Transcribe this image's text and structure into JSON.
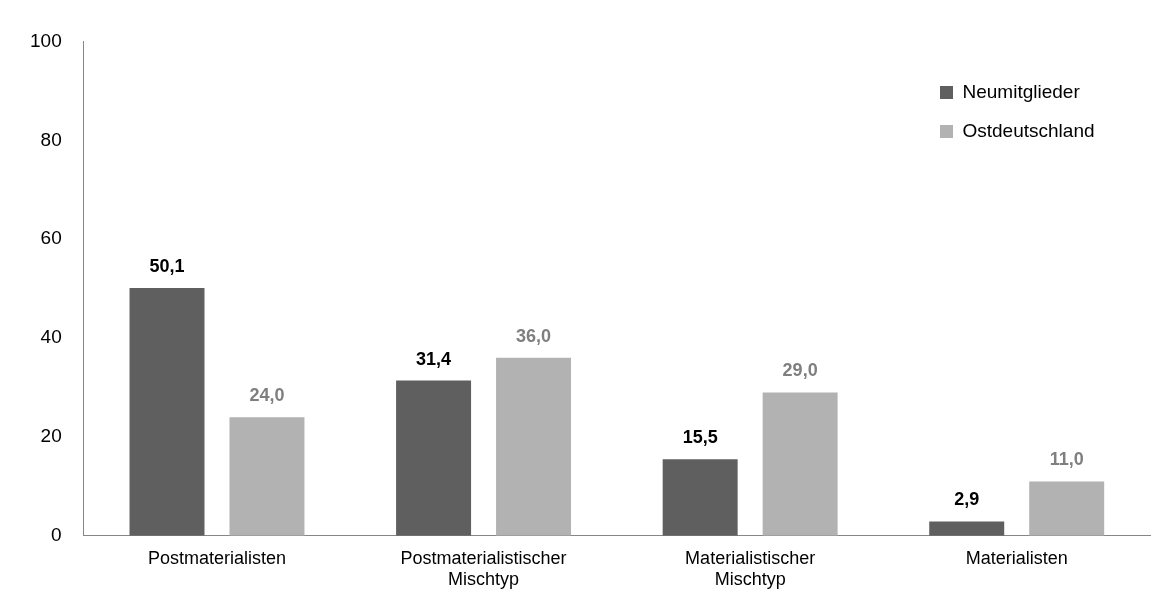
{
  "chart_data": {
    "type": "bar",
    "categories": [
      "Postmaterialisten",
      "Postmaterialistischer Mischtyp",
      "Materialistischer Mischtyp",
      "Materialisten"
    ],
    "series": [
      {
        "name": "Neumitglieder",
        "color": "#5f5f5f",
        "values": [
          50.1,
          31.4,
          15.5,
          2.9
        ],
        "value_labels": [
          "50,1",
          "31,4",
          "15,5",
          "2,9"
        ]
      },
      {
        "name": "Ostdeutschland",
        "color": "#b2b2b2",
        "values": [
          24.0,
          36.0,
          29.0,
          11.0
        ],
        "value_labels": [
          "24,0",
          "36,0",
          "29,0",
          "11,0"
        ]
      }
    ],
    "ylim": [
      0,
      100
    ],
    "yticks": [
      0,
      20,
      40,
      60,
      80,
      100
    ],
    "grid": false,
    "legend": "top right"
  }
}
